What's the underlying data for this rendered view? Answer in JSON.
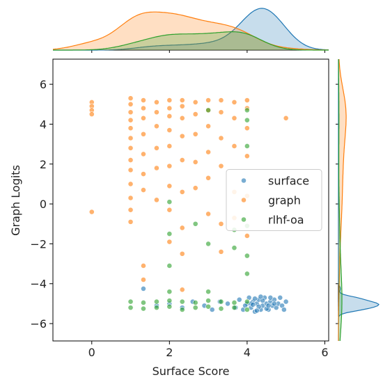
{
  "chart_data": {
    "type": "scatter",
    "xlabel": "Surface Score",
    "ylabel": "Graph Logits",
    "xlim": [
      -1,
      6.1
    ],
    "ylim": [
      -6.87,
      7.26
    ],
    "xticks": [
      0,
      2,
      4,
      6
    ],
    "yticks": [
      {
        "value": -6,
        "label": "−6"
      },
      {
        "value": -4,
        "label": "−4"
      },
      {
        "value": -2,
        "label": "−2"
      },
      0,
      2,
      4,
      6
    ],
    "legend": "center right",
    "series": [
      {
        "name": "surface",
        "color": "#1f77b4",
        "x": [
          1.33,
          1.67,
          2.0,
          2.33,
          2.6,
          2.9,
          3.1,
          3.3,
          3.5,
          3.7,
          3.8,
          3.9,
          4.0,
          4.05,
          4.1,
          4.15,
          4.2,
          4.25,
          4.3,
          4.35,
          4.4,
          4.45,
          4.5,
          4.55,
          4.6,
          4.65,
          4.7,
          4.75,
          4.8,
          4.85,
          4.9,
          4.95,
          5.0,
          4.1,
          4.2,
          4.3,
          4.4,
          4.5,
          4.6,
          4.7,
          3.95,
          4.25,
          4.55,
          4.35,
          4.15
        ],
        "y": [
          -4.25,
          -5.1,
          -5.0,
          -5.2,
          -4.9,
          -5.1,
          -5.3,
          -4.9,
          -5.0,
          -5.2,
          -4.8,
          -5.3,
          -5.0,
          -4.7,
          -5.2,
          -4.9,
          -5.4,
          -5.0,
          -4.8,
          -5.3,
          -5.1,
          -4.7,
          -5.0,
          -5.3,
          -4.9,
          -5.1,
          -4.8,
          -5.2,
          -5.0,
          -4.7,
          -5.1,
          -5.3,
          -4.9,
          -5.0,
          -4.75,
          -5.15,
          -4.85,
          -5.25,
          -4.7,
          -5.0,
          -5.1,
          -5.35,
          -5.1,
          -4.65,
          -5.05
        ]
      },
      {
        "name": "graph",
        "color": "#ff7f0e",
        "x": [
          0,
          0,
          0,
          0,
          0,
          1,
          1,
          1,
          1,
          1,
          1,
          1,
          1,
          1,
          1,
          1,
          1,
          1,
          1.33,
          1.33,
          1.33,
          1.33,
          1.33,
          1.33,
          1.33,
          1.33,
          1.33,
          1.67,
          1.67,
          1.67,
          1.67,
          1.67,
          1.67,
          2,
          2,
          2,
          2,
          2,
          2,
          2,
          2,
          2,
          2.33,
          2.33,
          2.33,
          2.33,
          2.33,
          2.33,
          2.33,
          2.33,
          2.33,
          2.67,
          2.67,
          2.67,
          2.67,
          2.67,
          3,
          3,
          3,
          3,
          3,
          3,
          3.33,
          3.33,
          3.33,
          3.33,
          3.33,
          3.33,
          3.67,
          3.67,
          3.67,
          3.67,
          3.67,
          4,
          4,
          4,
          4,
          4,
          4,
          5
        ],
        "y": [
          5.1,
          4.9,
          4.7,
          4.5,
          -0.4,
          5.3,
          5.0,
          4.6,
          4.2,
          3.8,
          3.3,
          2.8,
          2.2,
          1.7,
          1.0,
          0.3,
          -0.3,
          -0.9,
          5.2,
          4.8,
          4.3,
          3.5,
          2.5,
          1.5,
          0.7,
          -3.1,
          -3.8,
          5.1,
          4.6,
          3.9,
          2.8,
          1.8,
          0.2,
          5.2,
          4.8,
          4.4,
          3.7,
          2.9,
          1.9,
          0.9,
          -0.3,
          -1.9,
          5.2,
          4.9,
          4.3,
          3.4,
          2.2,
          0.6,
          -1.2,
          -2.5,
          -4.3,
          5.1,
          4.5,
          3.5,
          2.1,
          0.8,
          5.2,
          4.7,
          3.9,
          2.6,
          1.3,
          -0.5,
          5.2,
          4.6,
          3.3,
          1.9,
          -1.0,
          -2.4,
          5.1,
          4.3,
          2.9,
          0.6,
          -0.7,
          5.2,
          4.8,
          3.8,
          2.4,
          0.4,
          -1.6,
          4.3
        ]
      },
      {
        "name": "rlhf-oa",
        "color": "#2ca02c",
        "x": [
          1,
          1,
          1.33,
          1.33,
          1.67,
          1.67,
          2,
          2,
          2.33,
          2.33,
          2.67,
          2.67,
          3,
          3,
          3.33,
          3.33,
          3.67,
          3.67,
          4,
          4,
          2,
          2,
          2,
          2,
          3,
          3,
          3,
          3.67,
          3.67,
          4,
          4,
          4,
          4,
          4,
          4,
          2.67
        ],
        "y": [
          -4.9,
          -5.2,
          -4.95,
          -5.25,
          -4.9,
          -5.2,
          -4.85,
          -5.15,
          -4.9,
          -5.3,
          -4.95,
          -5.2,
          -4.85,
          -5.15,
          -4.9,
          -5.25,
          -4.95,
          -5.2,
          -4.9,
          -5.3,
          -4.4,
          -3.1,
          -1.5,
          0.1,
          -4.4,
          -2.0,
          4.7,
          -2.2,
          -1.3,
          4.7,
          4.2,
          2.9,
          -2.6,
          -3.5,
          -1.1,
          -1.0
        ]
      }
    ]
  }
}
